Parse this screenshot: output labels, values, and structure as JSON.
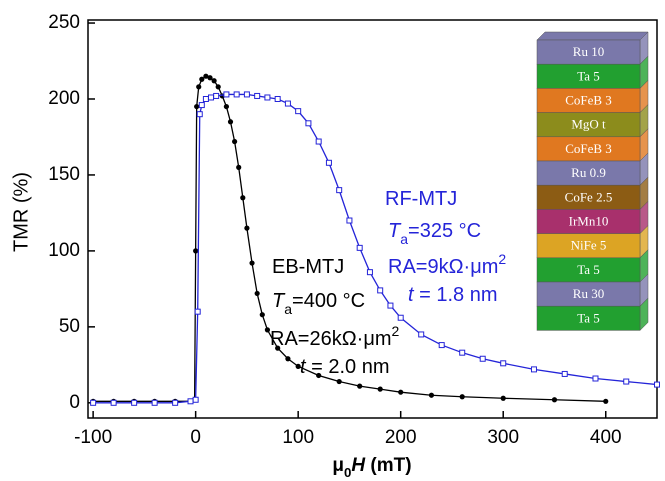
{
  "chart_data": {
    "type": "line",
    "x_label": [
      {
        "text": "μ"
      },
      {
        "text": "0",
        "sub": true
      },
      {
        "text": "H",
        "italic": true
      },
      {
        "text": " (mT)"
      }
    ],
    "y_label": "TMR (%)",
    "xlim": [
      -105,
      450
    ],
    "ylim": [
      -10,
      252
    ],
    "xticks": [
      -100,
      0,
      100,
      200,
      300,
      400
    ],
    "yticks": [
      0,
      50,
      100,
      150,
      200,
      250
    ],
    "series": [
      {
        "name": "EB-MTJ",
        "color": "#000000",
        "marker": "circle",
        "x": [
          -100,
          -80,
          -60,
          -40,
          -20,
          -5,
          -1,
          0,
          1,
          3,
          6,
          10,
          14,
          18,
          22,
          26,
          30,
          34,
          38,
          42,
          46,
          50,
          55,
          60,
          65,
          70,
          80,
          90,
          100,
          120,
          140,
          160,
          180,
          200,
          230,
          260,
          300,
          350,
          400
        ],
        "values": [
          1,
          1,
          1,
          1,
          1,
          1,
          2,
          100,
          195,
          208,
          213,
          215,
          214,
          212,
          208,
          202,
          195,
          185,
          172,
          155,
          135,
          115,
          92,
          72,
          58,
          48,
          36,
          29,
          24,
          18,
          14,
          11,
          9,
          7,
          5,
          4,
          3,
          2,
          1
        ]
      },
      {
        "name": "RF-MTJ",
        "color": "#2424d8",
        "marker": "square",
        "x": [
          -100,
          -80,
          -60,
          -40,
          -20,
          -5,
          0,
          2,
          4,
          6,
          10,
          15,
          20,
          30,
          40,
          50,
          60,
          70,
          80,
          90,
          100,
          110,
          120,
          130,
          140,
          150,
          160,
          170,
          180,
          190,
          200,
          220,
          240,
          260,
          280,
          300,
          330,
          360,
          390,
          420,
          450
        ],
        "values": [
          0,
          0,
          0,
          0,
          0,
          1,
          2,
          60,
          190,
          196,
          200,
          201,
          202,
          203,
          203,
          203,
          202,
          201,
          200,
          197,
          192,
          184,
          172,
          158,
          140,
          120,
          102,
          86,
          74,
          64,
          56,
          45,
          38,
          33,
          29,
          26,
          22,
          19,
          16,
          14,
          12
        ]
      }
    ],
    "annotations": [
      {
        "color": "#2424d8",
        "parts": [
          {
            "text": "RF-MTJ"
          }
        ]
      },
      {
        "color": "#2424d8",
        "parts": [
          {
            "text": "T",
            "italic": true
          },
          {
            "text": "a",
            "sub": true
          },
          {
            "text": "=325 °C"
          }
        ]
      },
      {
        "color": "#2424d8",
        "parts": [
          {
            "text": "RA=9kΩ·μm"
          },
          {
            "text": "2",
            "sup": true
          }
        ]
      },
      {
        "color": "#2424d8",
        "parts": [
          {
            "text": "t",
            "italic": true
          },
          {
            "text": " = 1.8 nm"
          }
        ]
      },
      {
        "color": "#000000",
        "parts": [
          {
            "text": "EB-MTJ"
          }
        ]
      },
      {
        "color": "#000000",
        "parts": [
          {
            "text": "T",
            "italic": true
          },
          {
            "text": "a",
            "sub": true
          },
          {
            "text": "=400 °C"
          }
        ]
      },
      {
        "color": "#000000",
        "parts": [
          {
            "text": "RA=26kΩ·μm"
          },
          {
            "text": "2",
            "sup": true
          }
        ]
      },
      {
        "color": "#000000",
        "parts": [
          {
            "text": "t",
            "italic": true
          },
          {
            "text": " = 2.0 nm"
          }
        ]
      }
    ],
    "inset_layers": [
      {
        "label": "Ru 10",
        "color": "#7a78aa"
      },
      {
        "label": "Ta 5",
        "color": "#22a030"
      },
      {
        "label": "CoFeB 3",
        "color": "#e07820"
      },
      {
        "label": "MgO t",
        "color": "#8c8c1c"
      },
      {
        "label": "CoFeB 3",
        "color": "#e07820"
      },
      {
        "label": "Ru 0.9",
        "color": "#7a78aa"
      },
      {
        "label": "CoFe 2.5",
        "color": "#8c5c14"
      },
      {
        "label": "IrMn10",
        "color": "#a8306c"
      },
      {
        "label": "NiFe 5",
        "color": "#dca424"
      },
      {
        "label": "Ta 5",
        "color": "#22a030"
      },
      {
        "label": "Ru 30",
        "color": "#7a78aa"
      },
      {
        "label": "Ta 5",
        "color": "#22a030"
      }
    ]
  }
}
